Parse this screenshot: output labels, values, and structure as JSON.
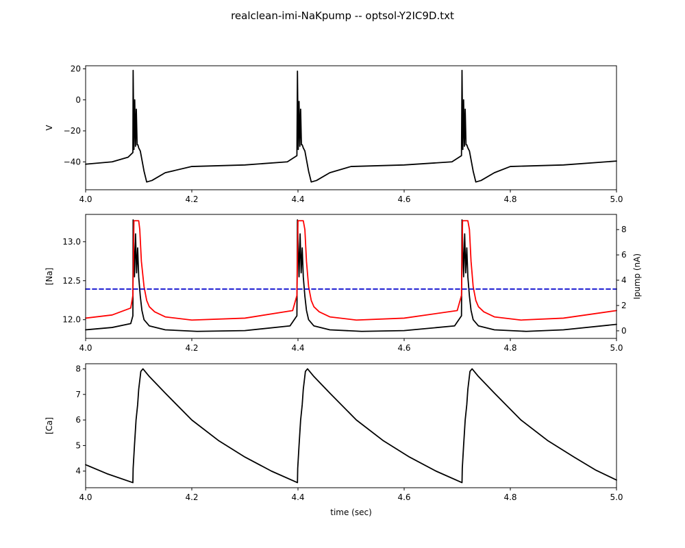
{
  "title": "realclean-imi-NaKpump -- optsol-Y2IC9D.txt",
  "chart_data": [
    {
      "type": "line",
      "panel": "top",
      "xlabel": "",
      "ylabel": "V",
      "xlim": [
        4.0,
        5.0
      ],
      "ylim": [
        -58,
        22
      ],
      "xticks": [
        "4.0",
        "4.2",
        "4.4",
        "4.6",
        "4.8",
        "5.0"
      ],
      "yticks": [
        "20",
        "0",
        "-20",
        "-40"
      ],
      "burst_times": [
        4.09,
        4.4,
        4.71
      ],
      "series": [
        {
          "color": "#000000",
          "x": [
            4.0,
            4.05,
            4.08,
            4.089,
            4.0895,
            4.091,
            4.0925,
            4.094,
            4.0955,
            4.097,
            4.0985,
            4.1,
            4.103,
            4.11,
            4.115,
            4.125,
            4.15,
            4.2,
            4.3,
            4.38,
            4.398,
            4.399,
            4.4005,
            4.402,
            4.4035,
            4.405,
            4.4065,
            4.408,
            4.41,
            4.413,
            4.42,
            4.425,
            4.435,
            4.46,
            4.5,
            4.6,
            4.69,
            4.708,
            4.709,
            4.7105,
            4.712,
            4.7135,
            4.715,
            4.7165,
            4.718,
            4.72,
            4.723,
            4.73,
            4.735,
            4.745,
            4.77,
            4.8,
            4.9,
            5.0
          ],
          "y": [
            -41.5,
            -40,
            -37,
            -34,
            19,
            -32,
            0,
            -30,
            -6,
            -29,
            -29,
            -31,
            -33,
            -46,
            -53,
            -52,
            -47,
            -43,
            -42,
            -40,
            -36,
            18.5,
            -32,
            -1,
            -30,
            -6,
            -29,
            -29,
            -31,
            -33,
            -46,
            -53,
            -52,
            -47,
            -43,
            -42,
            -40,
            -36,
            19,
            -32,
            0,
            -30,
            -6,
            -29,
            -29,
            -31,
            -33,
            -46,
            -53,
            -52,
            -47,
            -43,
            -42,
            -39.5
          ]
        }
      ]
    },
    {
      "type": "line",
      "panel": "middle",
      "xlabel": "",
      "ylabel": "[Na]",
      "y2label": "Ipump (nA)",
      "xlim": [
        4.0,
        5.0
      ],
      "ylim": [
        11.76,
        13.35
      ],
      "y2lim": [
        -0.6,
        9.2
      ],
      "xticks": [
        "4.0",
        "4.2",
        "4.4",
        "4.6",
        "4.8",
        "5.0"
      ],
      "yticks": [
        "13.0",
        "12.5",
        "12.0"
      ],
      "y2ticks": [
        "8",
        "6",
        "4",
        "2",
        "0"
      ],
      "series": [
        {
          "axis": "left",
          "color": "#000000",
          "x": [
            4.0,
            4.05,
            4.085,
            4.089,
            4.0895,
            4.092,
            4.094,
            4.096,
            4.098,
            4.1,
            4.103,
            4.106,
            4.11,
            4.12,
            4.15,
            4.21,
            4.3,
            4.385,
            4.398,
            4.399,
            4.402,
            4.404,
            4.406,
            4.408,
            4.41,
            4.413,
            4.416,
            4.42,
            4.43,
            4.46,
            4.52,
            4.6,
            4.695,
            4.708,
            4.709,
            4.712,
            4.714,
            4.716,
            4.718,
            4.72,
            4.723,
            4.726,
            4.73,
            4.74,
            4.77,
            4.83,
            4.9,
            5.0
          ],
          "y": [
            11.87,
            11.9,
            11.95,
            12.05,
            13.28,
            12.55,
            13.1,
            12.6,
            12.92,
            12.55,
            12.3,
            12.12,
            12.0,
            11.92,
            11.87,
            11.85,
            11.86,
            11.92,
            12.05,
            13.28,
            12.55,
            13.1,
            12.6,
            12.92,
            12.55,
            12.3,
            12.12,
            12.0,
            11.92,
            11.87,
            11.85,
            11.86,
            11.92,
            12.05,
            13.28,
            12.55,
            13.1,
            12.6,
            12.92,
            12.55,
            12.3,
            12.12,
            12.0,
            11.92,
            11.87,
            11.85,
            11.87,
            11.94
          ]
        },
        {
          "axis": "right",
          "color": "#ff0000",
          "x": [
            4.0,
            4.05,
            4.085,
            4.089,
            4.091,
            4.095,
            4.1,
            4.102,
            4.105,
            4.11,
            4.115,
            4.12,
            4.13,
            4.15,
            4.2,
            4.3,
            4.39,
            4.398,
            4.4,
            4.405,
            4.41,
            4.413,
            4.416,
            4.42,
            4.425,
            4.43,
            4.44,
            4.46,
            4.51,
            4.6,
            4.7,
            4.708,
            4.71,
            4.715,
            4.72,
            4.723,
            4.726,
            4.73,
            4.735,
            4.74,
            4.75,
            4.77,
            4.82,
            4.9,
            5.0
          ],
          "y": [
            1.0,
            1.25,
            1.8,
            2.8,
            8.7,
            8.7,
            8.7,
            8.0,
            5.5,
            3.5,
            2.4,
            1.9,
            1.5,
            1.1,
            0.85,
            1.0,
            1.6,
            2.8,
            8.7,
            8.7,
            8.7,
            8.0,
            5.5,
            3.5,
            2.4,
            1.9,
            1.5,
            1.1,
            0.85,
            1.0,
            1.6,
            2.8,
            8.7,
            8.7,
            8.7,
            8.0,
            5.5,
            3.5,
            2.4,
            1.9,
            1.5,
            1.1,
            0.85,
            1.0,
            1.6
          ]
        },
        {
          "axis": "right",
          "color": "#0000cc",
          "style": "dashed",
          "x": [
            4.0,
            5.0
          ],
          "y": [
            3.3,
            3.3
          ]
        }
      ]
    },
    {
      "type": "line",
      "panel": "bottom",
      "xlabel": "time (sec)",
      "ylabel": "[Ca]",
      "xlim": [
        4.0,
        5.0
      ],
      "ylim": [
        3.35,
        8.2
      ],
      "xticks": [
        "4.0",
        "4.2",
        "4.4",
        "4.6",
        "4.8",
        "5.0"
      ],
      "yticks": [
        "8",
        "7",
        "6",
        "5",
        "4"
      ],
      "series": [
        {
          "color": "#000000",
          "x": [
            4.0,
            4.04,
            4.089,
            4.0895,
            4.092,
            4.095,
            4.098,
            4.1,
            4.104,
            4.108,
            4.11,
            4.12,
            4.15,
            4.2,
            4.25,
            4.3,
            4.35,
            4.399,
            4.3995,
            4.402,
            4.405,
            4.408,
            4.41,
            4.414,
            4.418,
            4.42,
            4.43,
            4.46,
            4.51,
            4.56,
            4.61,
            4.66,
            4.709,
            4.7095,
            4.712,
            4.715,
            4.718,
            4.72,
            4.724,
            4.728,
            4.73,
            4.74,
            4.77,
            4.82,
            4.87,
            4.92,
            4.96,
            5.0
          ],
          "y": [
            4.25,
            3.9,
            3.55,
            4.1,
            5.0,
            6.0,
            6.6,
            7.2,
            7.9,
            8.0,
            7.95,
            7.7,
            7.05,
            6.0,
            5.2,
            4.55,
            4.0,
            3.55,
            4.1,
            5.0,
            6.0,
            6.6,
            7.2,
            7.9,
            8.0,
            7.95,
            7.7,
            7.05,
            6.0,
            5.2,
            4.55,
            4.0,
            3.55,
            4.1,
            5.0,
            6.0,
            6.6,
            7.2,
            7.9,
            8.0,
            7.95,
            7.7,
            7.05,
            6.0,
            5.2,
            4.55,
            4.05,
            3.65
          ]
        }
      ]
    }
  ]
}
